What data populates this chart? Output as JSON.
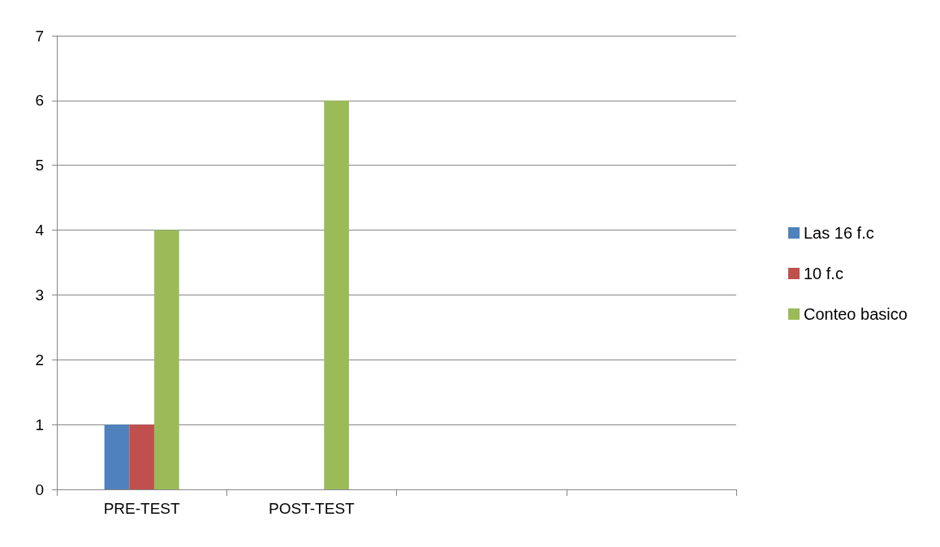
{
  "chart_data": {
    "type": "bar",
    "categories": [
      "PRE-TEST",
      "POST-TEST",
      null,
      null
    ],
    "series": [
      {
        "name": "Las 16 f.c",
        "color": "#4f81bd",
        "values": [
          1,
          0,
          null,
          null
        ]
      },
      {
        "name": "10 f.c",
        "color": "#c0504d",
        "values": [
          1,
          0,
          null,
          null
        ]
      },
      {
        "name": "Conteo basico",
        "color": "#9bbb59",
        "values": [
          4,
          6,
          null,
          null
        ]
      }
    ],
    "ylim": [
      0,
      7
    ],
    "yticks": [
      0,
      1,
      2,
      3,
      4,
      5,
      6,
      7
    ],
    "grid": "y",
    "legend": "right"
  }
}
